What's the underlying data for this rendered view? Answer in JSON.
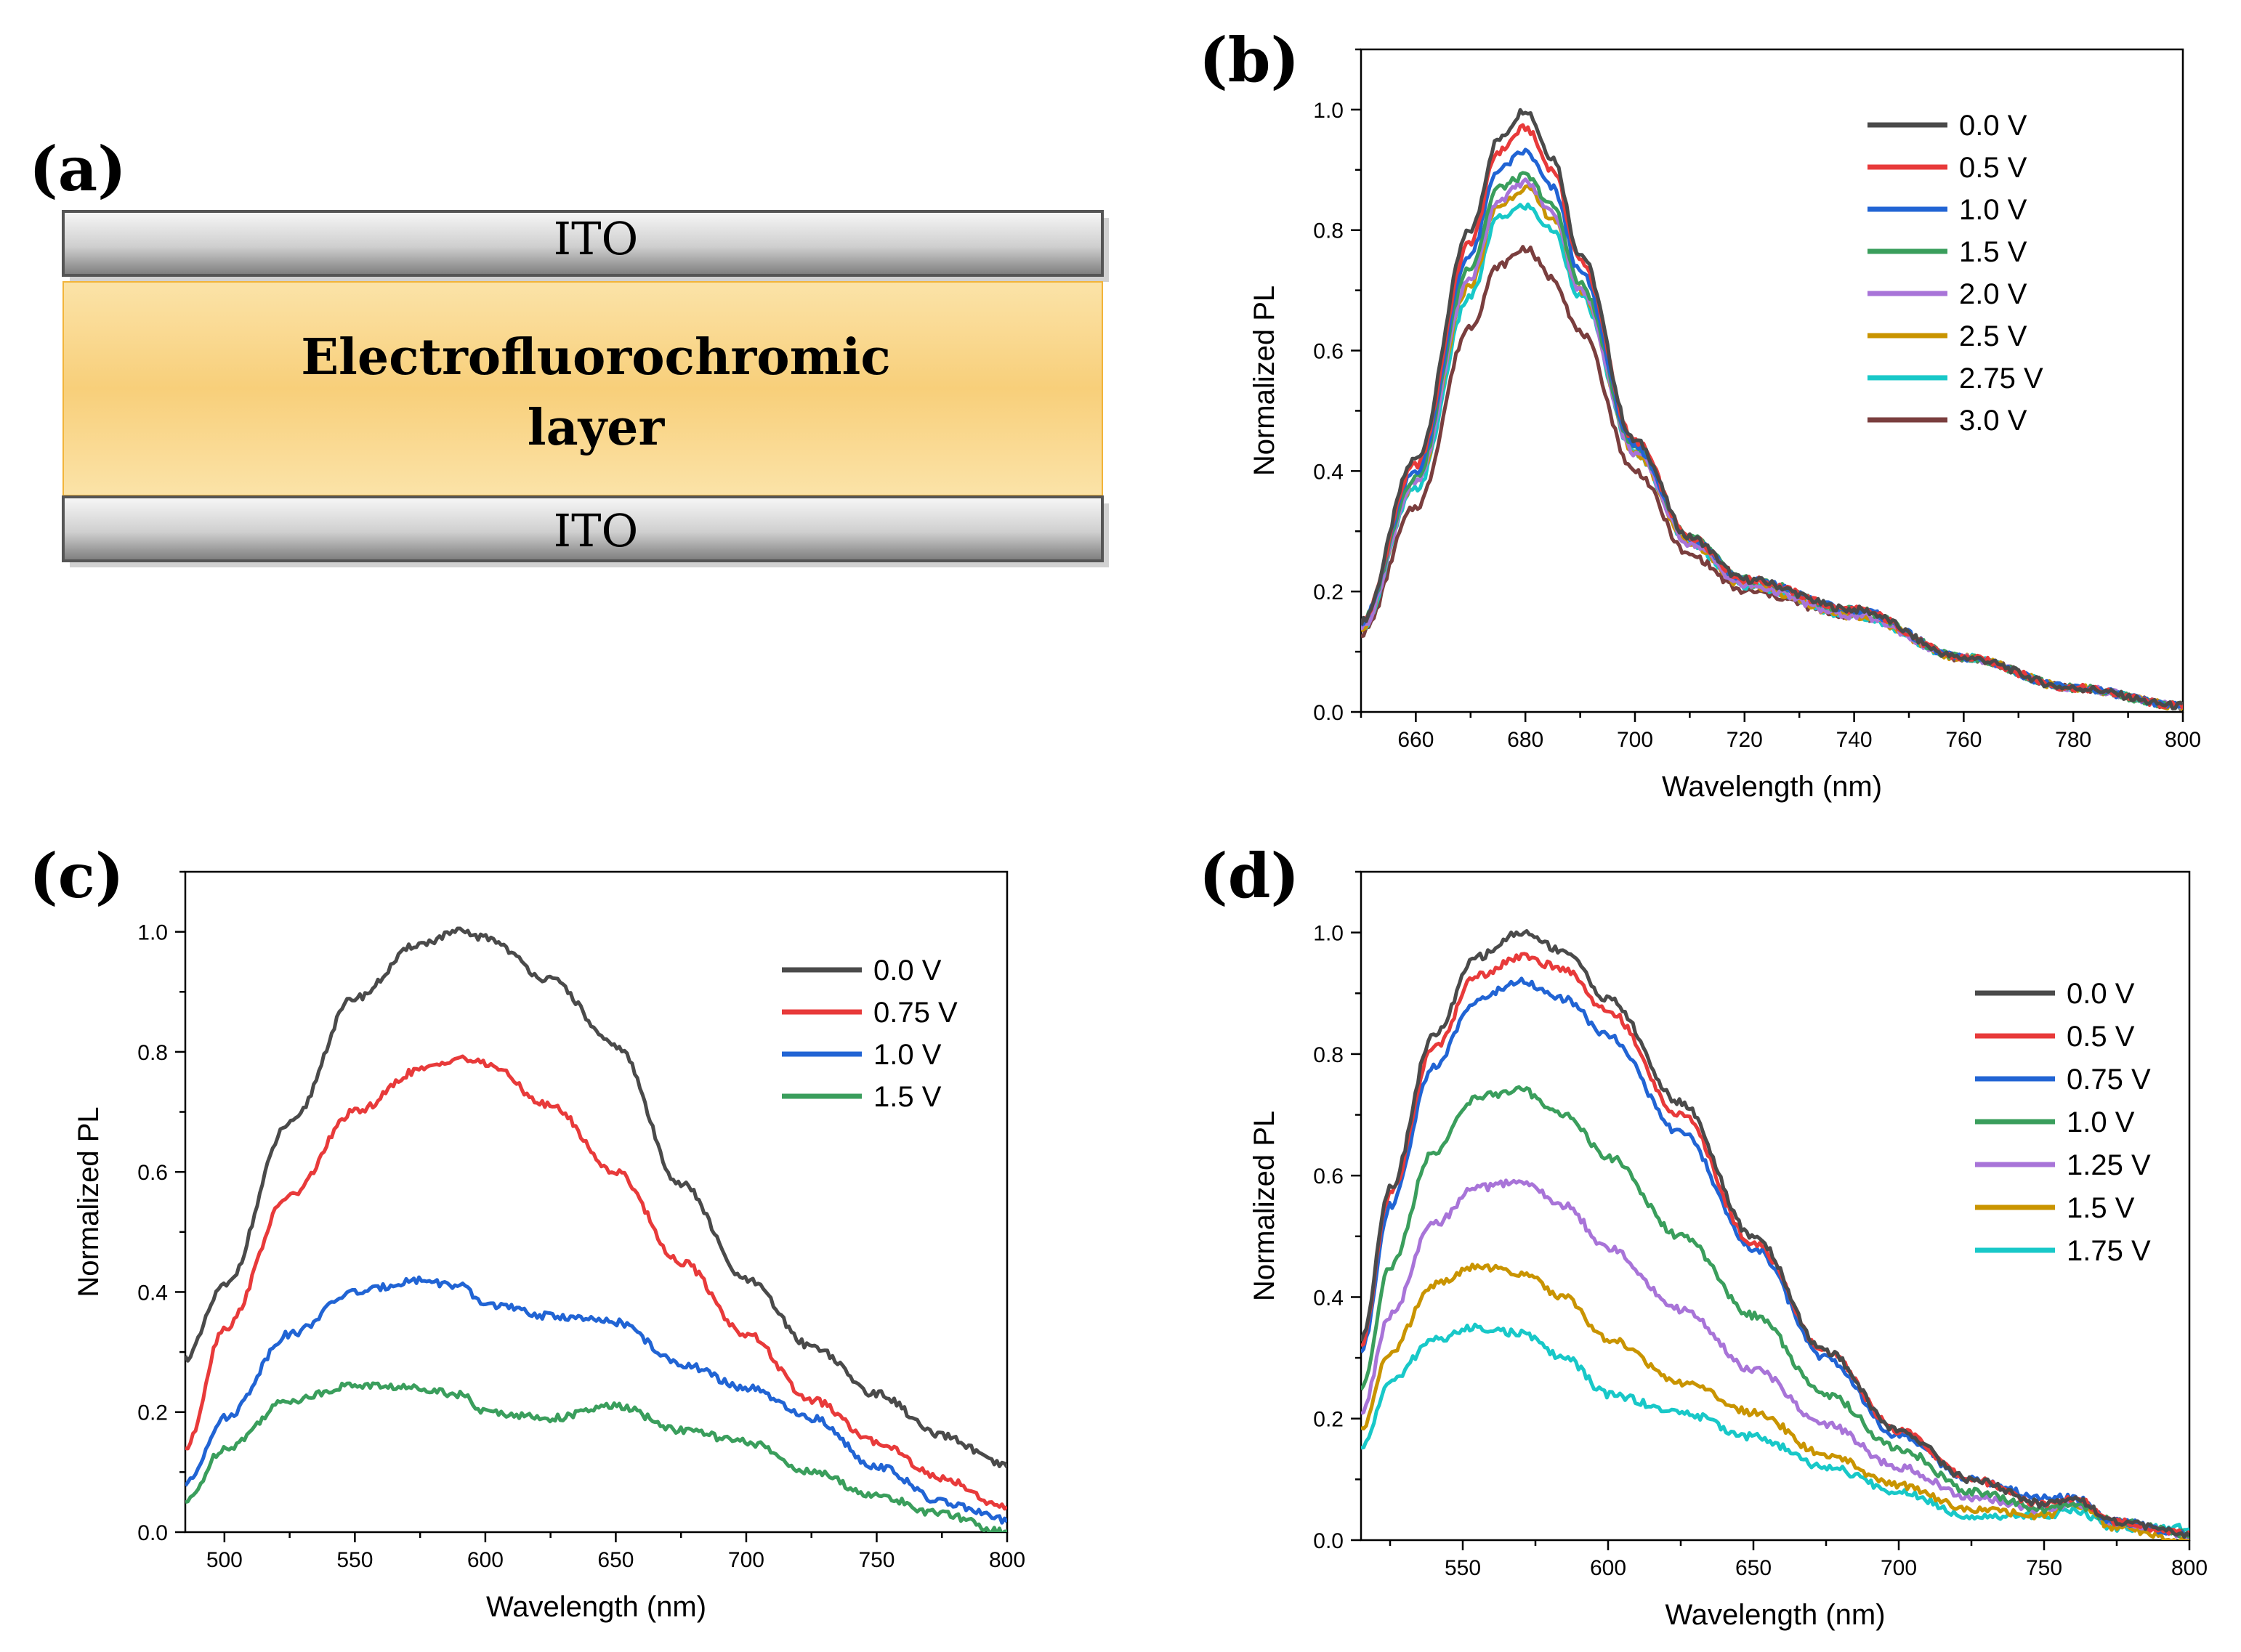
{
  "panel_a": {
    "label": "(a)",
    "top_electrode": "ITO",
    "layer_line1": "Electrofluorochromic",
    "layer_line2": "layer",
    "bottom_electrode": "ITO"
  },
  "chart_data": [
    {
      "id": "b",
      "panel_label": "(b)",
      "type": "line",
      "xlabel": "Wavelength (nm)",
      "ylabel": "Normalized PL",
      "xlim": [
        650,
        800
      ],
      "ylim": [
        0,
        1.1
      ],
      "xticks": [
        660,
        680,
        700,
        720,
        740,
        760,
        780,
        800
      ],
      "yticks": [
        0.0,
        0.2,
        0.4,
        0.6,
        0.8,
        1.0
      ],
      "tick_labels_y": [
        "0.0",
        "0.2",
        "0.4",
        "0.6",
        "0.8",
        "1.0"
      ],
      "legend_position": "top-right",
      "series": [
        {
          "name": "0.0 V",
          "color": "#4a4a4a",
          "x": [
            650,
            660,
            670,
            675,
            680,
            685,
            690,
            700,
            710,
            720,
            740,
            760,
            780,
            800
          ],
          "y": [
            0.15,
            0.42,
            0.8,
            0.95,
            1.0,
            0.92,
            0.76,
            0.45,
            0.29,
            0.22,
            0.17,
            0.09,
            0.04,
            0.01
          ]
        },
        {
          "name": "0.5 V",
          "color": "#e83a3a",
          "x": [
            650,
            660,
            670,
            675,
            680,
            685,
            690,
            700,
            710,
            720,
            740,
            760,
            780,
            800
          ],
          "y": [
            0.15,
            0.41,
            0.78,
            0.93,
            0.97,
            0.9,
            0.75,
            0.45,
            0.29,
            0.22,
            0.17,
            0.09,
            0.04,
            0.01
          ]
        },
        {
          "name": "1.0 V",
          "color": "#2164d4",
          "x": [
            650,
            660,
            670,
            675,
            680,
            685,
            690,
            700,
            710,
            720,
            740,
            760,
            780,
            800
          ],
          "y": [
            0.15,
            0.4,
            0.76,
            0.9,
            0.93,
            0.87,
            0.73,
            0.44,
            0.29,
            0.22,
            0.17,
            0.09,
            0.04,
            0.01
          ]
        },
        {
          "name": "1.5 V",
          "color": "#3a9e5c",
          "x": [
            650,
            660,
            670,
            675,
            680,
            685,
            690,
            700,
            710,
            720,
            740,
            760,
            780,
            800
          ],
          "y": [
            0.15,
            0.39,
            0.74,
            0.87,
            0.89,
            0.84,
            0.71,
            0.44,
            0.29,
            0.22,
            0.17,
            0.09,
            0.04,
            0.01
          ]
        },
        {
          "name": "2.0 V",
          "color": "#a874d8",
          "x": [
            650,
            660,
            670,
            675,
            680,
            685,
            690,
            700,
            710,
            720,
            740,
            760,
            780,
            800
          ],
          "y": [
            0.14,
            0.38,
            0.72,
            0.85,
            0.88,
            0.83,
            0.7,
            0.43,
            0.28,
            0.21,
            0.16,
            0.09,
            0.04,
            0.01
          ]
        },
        {
          "name": "2.5 V",
          "color": "#c99400",
          "x": [
            650,
            660,
            670,
            675,
            680,
            685,
            690,
            700,
            710,
            720,
            740,
            760,
            780,
            800
          ],
          "y": [
            0.14,
            0.38,
            0.71,
            0.84,
            0.87,
            0.82,
            0.7,
            0.43,
            0.28,
            0.21,
            0.16,
            0.09,
            0.04,
            0.01
          ]
        },
        {
          "name": "2.75 V",
          "color": "#18c8c8",
          "x": [
            650,
            660,
            670,
            675,
            680,
            685,
            690,
            700,
            710,
            720,
            740,
            760,
            780,
            800
          ],
          "y": [
            0.14,
            0.37,
            0.69,
            0.82,
            0.84,
            0.8,
            0.69,
            0.43,
            0.28,
            0.21,
            0.16,
            0.09,
            0.04,
            0.01
          ]
        },
        {
          "name": "3.0 V",
          "color": "#7a3e3e",
          "x": [
            650,
            660,
            670,
            675,
            680,
            685,
            690,
            700,
            710,
            720,
            740,
            760,
            780,
            800
          ],
          "y": [
            0.13,
            0.34,
            0.64,
            0.74,
            0.77,
            0.72,
            0.63,
            0.4,
            0.26,
            0.2,
            0.16,
            0.09,
            0.04,
            0.01
          ]
        }
      ]
    },
    {
      "id": "c",
      "panel_label": "(c)",
      "type": "line",
      "xlabel": "Wavelength (nm)",
      "ylabel": "Normalized PL",
      "xlim": [
        485,
        800
      ],
      "ylim": [
        0,
        1.1
      ],
      "xticks": [
        500,
        550,
        600,
        650,
        700,
        750,
        800
      ],
      "yticks": [
        0.0,
        0.2,
        0.4,
        0.6,
        0.8,
        1.0
      ],
      "tick_labels_y": [
        "0.0",
        "0.2",
        "0.4",
        "0.6",
        "0.8",
        "1.0"
      ],
      "legend_position": "top-right",
      "series": [
        {
          "name": "0.0 V",
          "color": "#4a4a4a",
          "x": [
            485,
            500,
            525,
            550,
            575,
            590,
            600,
            625,
            650,
            675,
            700,
            725,
            750,
            775,
            800
          ],
          "y": [
            0.29,
            0.41,
            0.68,
            0.89,
            0.98,
            1.0,
            0.99,
            0.92,
            0.81,
            0.58,
            0.42,
            0.31,
            0.23,
            0.16,
            0.11
          ]
        },
        {
          "name": "0.75 V",
          "color": "#e83a3a",
          "x": [
            485,
            500,
            525,
            550,
            575,
            590,
            600,
            625,
            650,
            675,
            700,
            725,
            750,
            775,
            800
          ],
          "y": [
            0.14,
            0.34,
            0.56,
            0.7,
            0.77,
            0.79,
            0.78,
            0.71,
            0.6,
            0.45,
            0.33,
            0.22,
            0.15,
            0.09,
            0.04
          ]
        },
        {
          "name": "1.0 V",
          "color": "#2164d4",
          "x": [
            485,
            500,
            525,
            550,
            575,
            590,
            600,
            625,
            650,
            675,
            700,
            725,
            750,
            775,
            800
          ],
          "y": [
            0.08,
            0.19,
            0.33,
            0.4,
            0.42,
            0.41,
            0.38,
            0.36,
            0.35,
            0.28,
            0.24,
            0.19,
            0.11,
            0.05,
            0.02
          ]
        },
        {
          "name": "1.5 V",
          "color": "#3a9e5c",
          "x": [
            485,
            500,
            525,
            550,
            575,
            590,
            600,
            625,
            650,
            675,
            700,
            725,
            750,
            775,
            800
          ],
          "y": [
            0.05,
            0.14,
            0.22,
            0.245,
            0.24,
            0.23,
            0.2,
            0.19,
            0.21,
            0.17,
            0.15,
            0.1,
            0.06,
            0.03,
            0.0
          ]
        }
      ]
    },
    {
      "id": "d",
      "panel_label": "(d)",
      "type": "line",
      "xlabel": "Wavelength (nm)",
      "ylabel": "Normalized PL",
      "xlim": [
        515,
        800
      ],
      "ylim": [
        0,
        1.1
      ],
      "xticks": [
        550,
        600,
        650,
        700,
        750,
        800
      ],
      "yticks": [
        0.0,
        0.2,
        0.4,
        0.6,
        0.8,
        1.0
      ],
      "tick_labels_y": [
        "0.0",
        "0.2",
        "0.4",
        "0.6",
        "0.8",
        "1.0"
      ],
      "legend_position": "top-right",
      "series": [
        {
          "name": "0.0 V",
          "color": "#4a4a4a",
          "x": [
            515,
            525,
            540,
            555,
            570,
            585,
            600,
            625,
            650,
            675,
            700,
            725,
            750,
            760,
            775,
            800
          ],
          "y": [
            0.33,
            0.58,
            0.83,
            0.96,
            1.0,
            0.97,
            0.89,
            0.72,
            0.5,
            0.31,
            0.18,
            0.1,
            0.06,
            0.07,
            0.03,
            0.01
          ]
        },
        {
          "name": "0.5 V",
          "color": "#e83a3a",
          "x": [
            515,
            525,
            540,
            555,
            570,
            585,
            600,
            625,
            650,
            675,
            700,
            725,
            750,
            760,
            775,
            800
          ],
          "y": [
            0.32,
            0.57,
            0.81,
            0.93,
            0.96,
            0.94,
            0.87,
            0.7,
            0.49,
            0.31,
            0.18,
            0.1,
            0.06,
            0.07,
            0.03,
            0.01
          ]
        },
        {
          "name": "0.75 V",
          "color": "#2164d4",
          "x": [
            515,
            525,
            540,
            555,
            570,
            585,
            600,
            625,
            650,
            675,
            700,
            725,
            750,
            760,
            775,
            800
          ],
          "y": [
            0.31,
            0.55,
            0.78,
            0.89,
            0.92,
            0.89,
            0.83,
            0.67,
            0.48,
            0.3,
            0.17,
            0.1,
            0.07,
            0.07,
            0.03,
            0.01
          ]
        },
        {
          "name": "1.0 V",
          "color": "#3a9e5c",
          "x": [
            515,
            525,
            540,
            555,
            570,
            585,
            600,
            625,
            650,
            675,
            700,
            725,
            750,
            760,
            775,
            800
          ],
          "y": [
            0.25,
            0.45,
            0.64,
            0.73,
            0.74,
            0.7,
            0.63,
            0.5,
            0.37,
            0.24,
            0.15,
            0.08,
            0.05,
            0.06,
            0.03,
            0.01
          ]
        },
        {
          "name": "1.25 V",
          "color": "#a874d8",
          "x": [
            515,
            525,
            540,
            555,
            570,
            585,
            600,
            625,
            650,
            675,
            700,
            725,
            750,
            760,
            775,
            800
          ],
          "y": [
            0.21,
            0.37,
            0.52,
            0.58,
            0.59,
            0.55,
            0.48,
            0.38,
            0.28,
            0.19,
            0.12,
            0.07,
            0.05,
            0.06,
            0.03,
            0.01
          ]
        },
        {
          "name": "1.5 V",
          "color": "#c99400",
          "x": [
            515,
            525,
            540,
            555,
            570,
            585,
            600,
            625,
            650,
            675,
            700,
            725,
            750,
            760,
            775,
            800
          ],
          "y": [
            0.18,
            0.31,
            0.42,
            0.45,
            0.44,
            0.4,
            0.33,
            0.26,
            0.21,
            0.14,
            0.09,
            0.05,
            0.04,
            0.06,
            0.02,
            0.0
          ]
        },
        {
          "name": "1.75 V",
          "color": "#18c8c8",
          "x": [
            515,
            525,
            540,
            555,
            570,
            585,
            600,
            625,
            650,
            675,
            700,
            725,
            750,
            760,
            775,
            800
          ],
          "y": [
            0.15,
            0.26,
            0.33,
            0.35,
            0.34,
            0.3,
            0.24,
            0.21,
            0.17,
            0.12,
            0.08,
            0.04,
            0.04,
            0.05,
            0.02,
            0.02
          ]
        }
      ]
    }
  ]
}
